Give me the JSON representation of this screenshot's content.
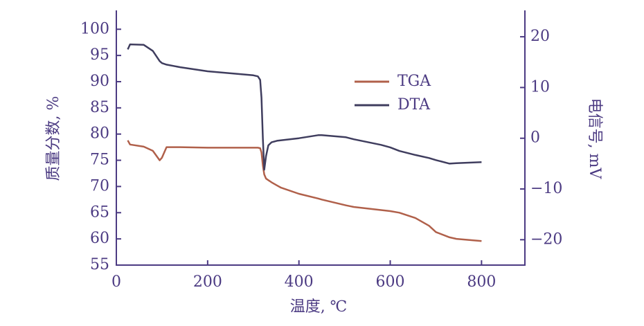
{
  "chart_data": {
    "type": "line",
    "x_label": "温度, ℃",
    "y_label": "质量分数, %",
    "y2_label": "电信号, mV",
    "x": [
      25,
      30,
      60,
      80,
      95,
      100,
      110,
      140,
      200,
      300,
      310,
      315,
      318,
      321,
      324,
      328,
      333,
      340,
      352,
      360,
      400,
      442,
      450,
      503,
      520,
      580,
      600,
      620,
      655,
      685,
      700,
      730,
      745,
      800
    ],
    "series": [
      {
        "name": "TGA",
        "color": "#b0604a",
        "values": [
          78.8,
          78.0,
          77.6,
          76.8,
          75.0,
          75.5,
          77.5,
          77.5,
          77.4,
          77.4,
          77.4,
          77.3,
          76.5,
          74,
          72.3,
          71.5,
          71.2,
          70.8,
          70.2,
          69.8,
          68.6,
          67.7,
          67.5,
          66.4,
          66.1,
          65.5,
          65.3,
          65.0,
          64.0,
          62.5,
          61.3,
          60.3,
          60.0,
          59.6
        ]
      },
      {
        "name": "DTA",
        "color": "#3f3d5e",
        "axis": "y2",
        "values": [
          17.5,
          18.5,
          18.4,
          17.2,
          15.2,
          14.8,
          14.5,
          14.0,
          13.2,
          12.4,
          12.2,
          11.5,
          8,
          0,
          -6.2,
          -3.5,
          -1.4,
          -0.8,
          -0.5,
          -0.4,
          0,
          0.6,
          0.6,
          0.2,
          -0.2,
          -1.3,
          -1.8,
          -2.5,
          -3.3,
          -3.9,
          -4.3,
          -5.0,
          -4.9,
          -4.7
        ]
      }
    ],
    "xlim": [
      0,
      895
    ],
    "xticks": [
      0,
      200,
      400,
      600,
      800
    ],
    "ylim": [
      55,
      103.6
    ],
    "yticks": [
      55,
      60,
      65,
      70,
      75,
      80,
      85,
      90,
      95,
      100
    ],
    "y2lim": [
      -25,
      25.2
    ],
    "y2ticks": [
      {
        "value": -20,
        "label": "−20"
      },
      {
        "value": -10,
        "label": "−10"
      },
      0,
      10,
      20
    ],
    "legend": "upper center"
  }
}
